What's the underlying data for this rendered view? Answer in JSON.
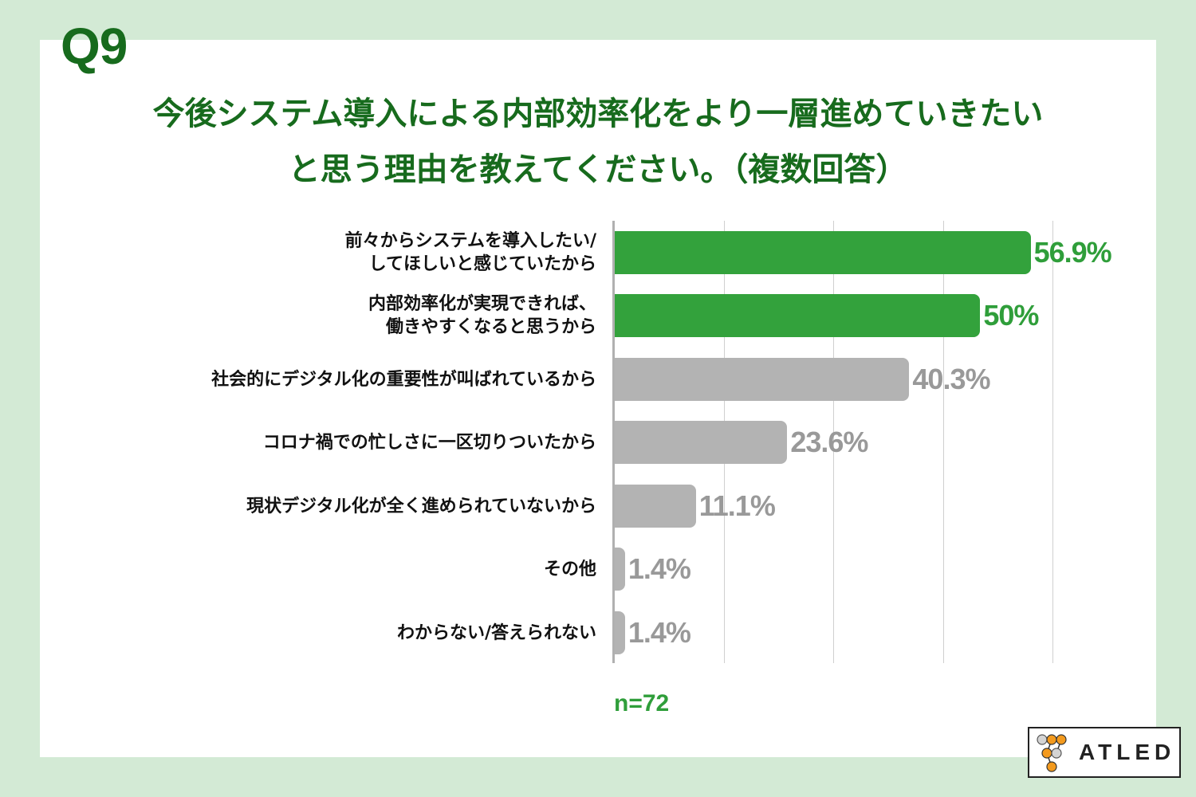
{
  "header": {
    "question_number": "Q9",
    "title_line1": "今後システム導入による内部効率化をより一層進めていきたい",
    "title_line2": "と思う理由を教えてください。（複数回答）"
  },
  "footer": {
    "sample_size": "n=72",
    "logo_text": "ATLED"
  },
  "colors": {
    "background": "#d3ead5",
    "title_green": "#176b1d",
    "highlight_bar": "#33a23c",
    "normal_bar": "#b3b3b3",
    "highlight_value": "#2f9e3a",
    "normal_value": "#999999",
    "logo_orange": "#f39a1e"
  },
  "chart_data": {
    "type": "bar",
    "orientation": "horizontal",
    "title": "今後システム導入による内部効率化をより一層進めていきたいと思う理由を教えてください。（複数回答）",
    "categories": [
      "前々からシステムを導入したい/してほしいと感じていたから",
      "内部効率化が実現できれば、働きやすくなると思うから",
      "社会的にデジタル化の重要性が叫ばれているから",
      "コロナ禍での忙しさに一区切りついたから",
      "現状デジタル化が全く進められていないから",
      "その他",
      "わからない/答えられない"
    ],
    "values": [
      56.9,
      50,
      40.3,
      23.6,
      11.1,
      1.4,
      1.4
    ],
    "value_labels": [
      "56.9%",
      "50%",
      "40.3%",
      "23.6%",
      "11.1%",
      "1.4%",
      "1.4%"
    ],
    "highlighted": [
      true,
      true,
      false,
      false,
      false,
      false,
      false
    ],
    "unit": "%",
    "xlim": [
      0,
      60
    ],
    "gridlines": [
      15,
      30,
      45,
      60
    ],
    "grid": true,
    "legend": "none",
    "xlabel": "",
    "ylabel": "",
    "note": "n=72",
    "rows": [
      {
        "label1": "前々からシステムを導入したい/",
        "label2": "してほしいと感じていたから",
        "value": 56.9,
        "value_label": "56.9%",
        "highlight": true
      },
      {
        "label1": "内部効率化が実現できれば、",
        "label2": "働きやすくなると思うから",
        "value": 50,
        "value_label": "50%",
        "highlight": true
      },
      {
        "label1": "社会的にデジタル化の重要性が叫ばれているから",
        "label2": "",
        "value": 40.3,
        "value_label": "40.3%",
        "highlight": false
      },
      {
        "label1": "コロナ禍での忙しさに一区切りついたから",
        "label2": "",
        "value": 23.6,
        "value_label": "23.6%",
        "highlight": false
      },
      {
        "label1": "現状デジタル化が全く進められていないから",
        "label2": "",
        "value": 11.1,
        "value_label": "11.1%",
        "highlight": false
      },
      {
        "label1": "その他",
        "label2": "",
        "value": 1.4,
        "value_label": "1.4%",
        "highlight": false
      },
      {
        "label1": "わからない/答えられない",
        "label2": "",
        "value": 1.4,
        "value_label": "1.4%",
        "highlight": false
      }
    ]
  }
}
